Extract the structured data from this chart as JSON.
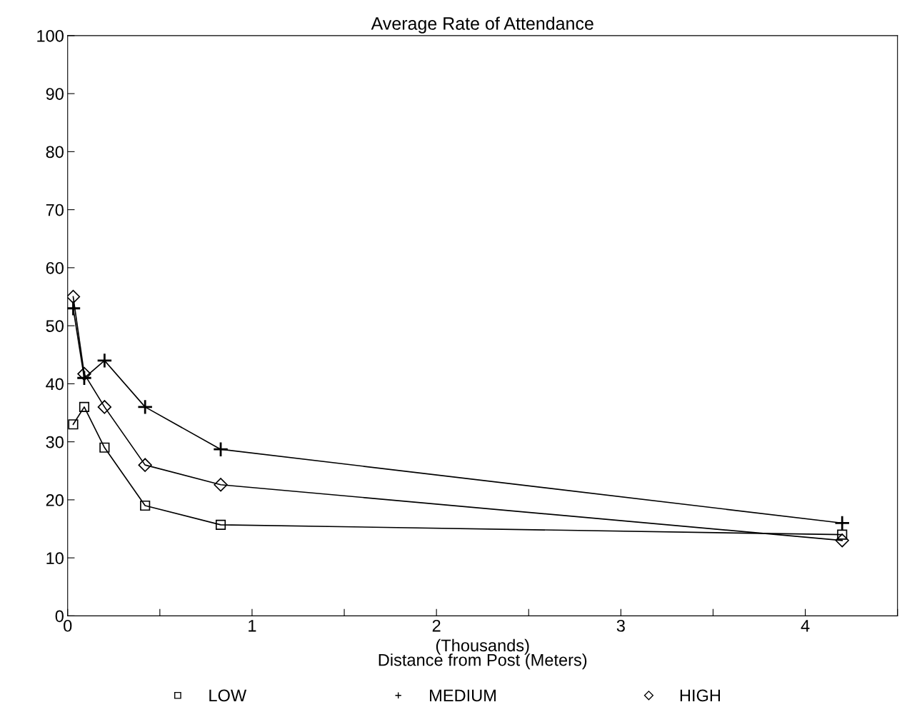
{
  "chart_data": {
    "type": "line",
    "title": "Average Rate of Attendance",
    "xlabel": "(Thousands)\nDistance from Post (Meters)",
    "x": [
      0.03,
      0.09,
      0.2,
      0.42,
      0.83,
      4.2
    ],
    "series": [
      {
        "name": "LOW",
        "color": "#000000",
        "marker": "square",
        "values": [
          33,
          36,
          29,
          19,
          15.7,
          14
        ]
      },
      {
        "name": "MEDIUM",
        "color": "#000000",
        "marker": "cross",
        "values": [
          53,
          41,
          44,
          36,
          28.7,
          16
        ]
      },
      {
        "name": "HIGH",
        "color": "#000000",
        "marker": "diamond",
        "values": [
          55,
          41.7,
          36,
          26,
          22.6,
          13
        ]
      }
    ],
    "xlim": [
      0,
      4.5
    ],
    "ylim": [
      0,
      100
    ],
    "xticks": [
      0,
      {
        "value": 0.5,
        "label": null
      },
      1,
      {
        "value": 1.5,
        "label": null
      },
      2,
      {
        "value": 2.5,
        "label": null
      },
      3,
      {
        "value": 3.5,
        "label": null
      },
      4,
      {
        "value": 4.5,
        "label": null
      }
    ],
    "yticks": [
      0,
      10,
      20,
      30,
      40,
      50,
      60,
      70,
      80,
      90,
      100
    ],
    "grid": false,
    "legend": "bottom",
    "line_style": "solid"
  }
}
